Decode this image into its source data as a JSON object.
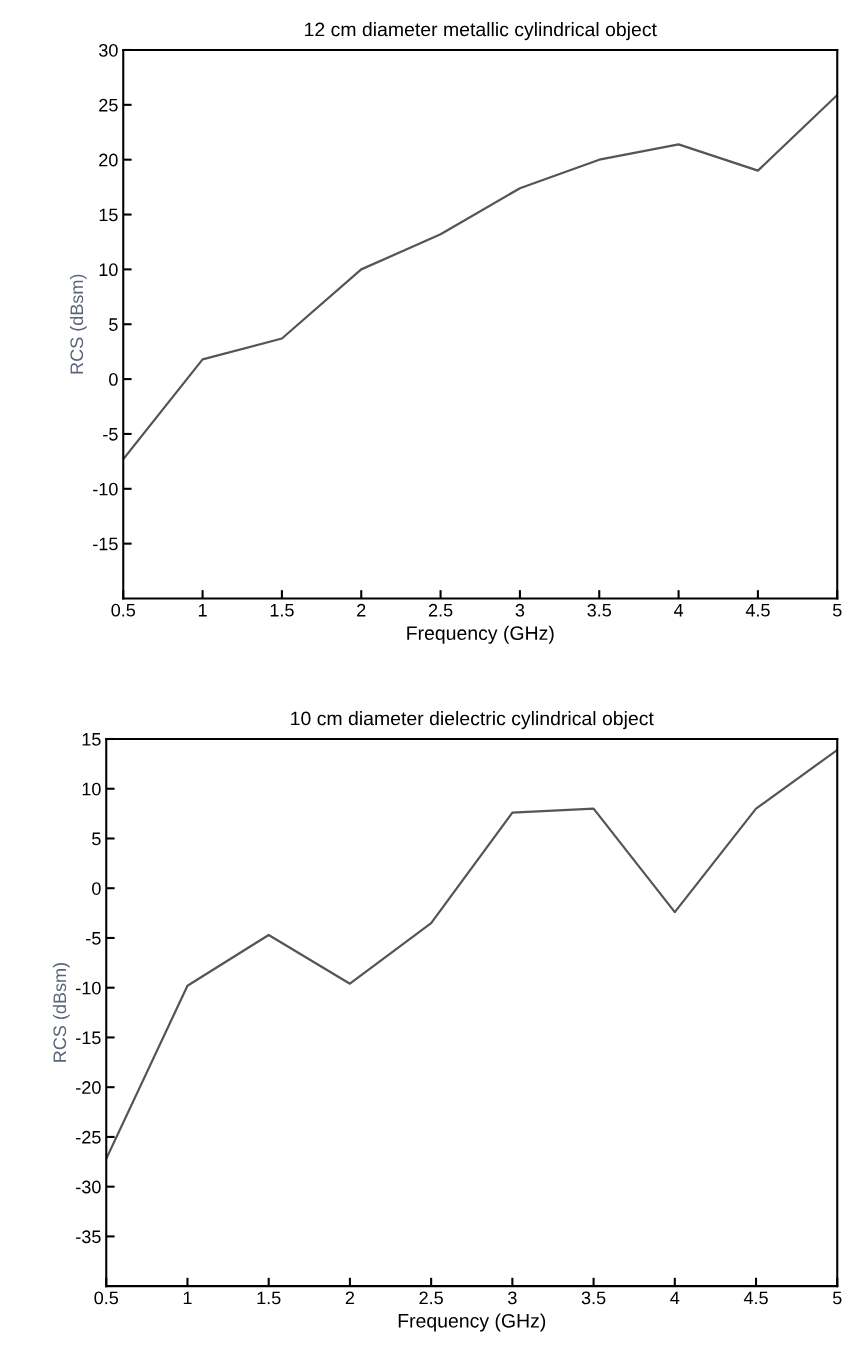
{
  "chart_data": [
    {
      "type": "line",
      "title": "12 cm diameter metallic cylindrical object",
      "xlabel": "Frequency (GHz)",
      "ylabel": "RCS (dBsm)",
      "x": [
        0.5,
        1,
        1.5,
        2,
        2.5,
        3,
        3.5,
        4,
        4.5,
        5
      ],
      "series": [
        {
          "color": "#555555",
          "values": [
            -7.3,
            1.8,
            3.7,
            10,
            13.2,
            17.4,
            20,
            21.4,
            19,
            25.9
          ]
        }
      ],
      "xlim": [
        0.5,
        5
      ],
      "ylim": [
        -20,
        30
      ],
      "xticks": [
        0.5,
        1,
        1.5,
        2,
        2.5,
        3,
        3.5,
        4,
        4.5,
        5
      ],
      "yticks": [
        30,
        25,
        20,
        15,
        10,
        5,
        0,
        -5,
        -10,
        -15
      ],
      "grid": false,
      "legend": false
    },
    {
      "type": "line",
      "title": "10 cm diameter dielectric cylindrical object",
      "xlabel": "Frequency (GHz)",
      "ylabel": "RCS (dBsm)",
      "x": [
        0.5,
        1,
        1.5,
        2,
        2.5,
        3,
        3.5,
        4,
        4.5,
        5
      ],
      "series": [
        {
          "color": "#555555",
          "values": [
            -27.2,
            -9.8,
            -4.7,
            -9.6,
            -3.5,
            7.6,
            8,
            -2.4,
            8,
            13.9
          ]
        }
      ],
      "xlim": [
        0.5,
        5
      ],
      "ylim": [
        -40,
        15
      ],
      "xticks": [
        0.5,
        1,
        1.5,
        2,
        2.5,
        3,
        3.5,
        4,
        4.5,
        5
      ],
      "yticks": [
        15,
        10,
        5,
        0,
        -5,
        -10,
        -15,
        -20,
        -25,
        -30,
        -35
      ],
      "grid": false,
      "legend": false
    }
  ]
}
